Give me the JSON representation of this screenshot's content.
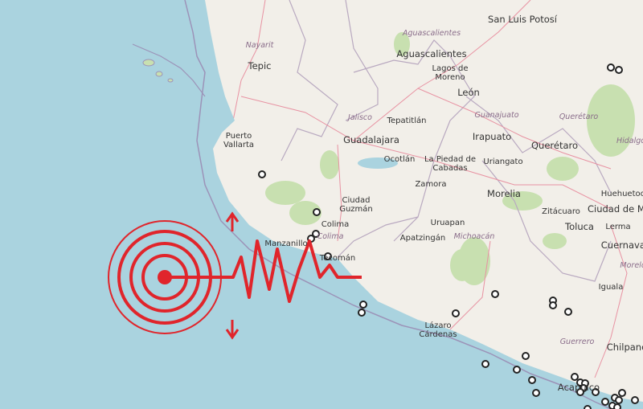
{
  "map": {
    "colors": {
      "land": "#f2efe9",
      "sea": "#aad3df",
      "forest": "#c8e0b0",
      "road": "#e892a2",
      "border": "#b9a9c0",
      "quake": "#e0252b",
      "marker": "#222222"
    },
    "cities": [
      "San Luis Potosí",
      "Aguascalientes",
      "Tepic",
      "Lagos de Moreno",
      "León",
      "Tepatitlán",
      "Guadalajara",
      "Irapuato",
      "Querétaro",
      "Puerto Vallarta",
      "Ocotlán",
      "La Piedad de Cabadas",
      "Uriangato",
      "Zamora",
      "Morelia",
      "Huehuetoca",
      "Ciudad Guzmán",
      "Colima",
      "Manzanillo",
      "Tecomán",
      "Uruapan",
      "Apatzingán",
      "Zitácuaro",
      "Toluca",
      "Lerma",
      "Ciudad de México",
      "Cuernavaca",
      "Iguala",
      "Lázaro Cárdenas",
      "Chilpancingo",
      "Acapulco"
    ],
    "states": [
      "Nayarit",
      "Aguascalientes",
      "Jalisco",
      "Guanajuato",
      "Querétaro",
      "Hidalgo",
      "Colima",
      "Michoacán",
      "Guerrero",
      "Morelos"
    ],
    "overlay_icon": "earthquake-epicenter-seismograph-icon",
    "marker_icon": "earthquake-location-marker"
  }
}
